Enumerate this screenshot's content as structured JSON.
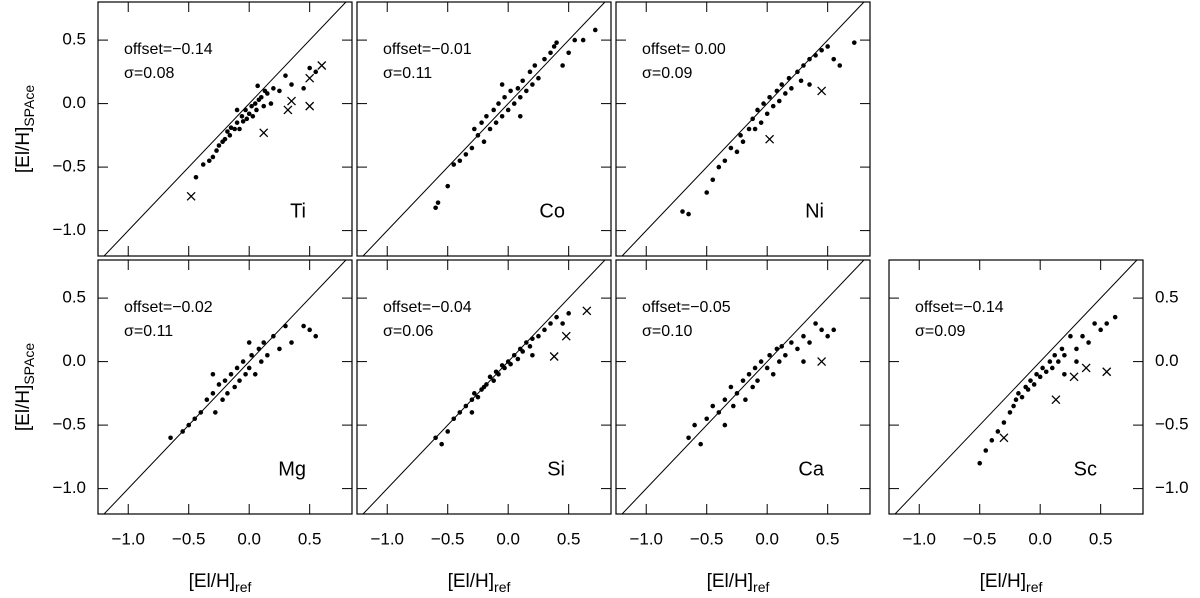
{
  "chart_data": [
    {
      "type": "scatter",
      "element": "Ti",
      "offset": "offset=−0.14",
      "sigma": "σ=0.08",
      "ylabel": {
        "main": "[El/H]",
        "sub": "SPAce"
      },
      "xlim": [
        -1.25,
        0.85
      ],
      "ylim": [
        -1.2,
        0.8
      ],
      "xticks": [
        -1,
        -0.5,
        0,
        0.5
      ],
      "yticks": [
        {
          "value": -1,
          "label": "−1.0"
        },
        {
          "value": -0.5,
          "label": "−0.5"
        },
        {
          "value": 0,
          "label": "0.0"
        },
        0.5
      ],
      "x": [
        -0.44,
        -0.38,
        -0.33,
        -0.3,
        -0.27,
        -0.25,
        -0.22,
        -0.2,
        -0.18,
        -0.16,
        -0.15,
        -0.12,
        -0.1,
        -0.08,
        -0.06,
        -0.05,
        -0.03,
        -0.02,
        0.0,
        0.02,
        0.03,
        0.05,
        0.06,
        0.08,
        0.1,
        0.12,
        0.13,
        0.15,
        0.18,
        0.2,
        0.25,
        0.3,
        0.35,
        0.45,
        0.5,
        0.55,
        -0.1,
        0.07
      ],
      "y": [
        -0.58,
        -0.48,
        -0.45,
        -0.42,
        -0.37,
        -0.33,
        -0.3,
        -0.28,
        -0.22,
        -0.25,
        -0.19,
        -0.2,
        -0.15,
        -0.2,
        -0.1,
        -0.14,
        -0.05,
        -0.12,
        -0.08,
        -0.02,
        -0.1,
        0.0,
        -0.05,
        0.03,
        0.05,
        -0.02,
        0.1,
        0.08,
        0.0,
        0.12,
        0.1,
        0.22,
        0.15,
        0.12,
        0.28,
        0.25,
        -0.05,
        0.14
      ],
      "flagged_x": [
        -0.48,
        0.12,
        0.32,
        0.35,
        0.5,
        0.5,
        0.6
      ],
      "flagged_y": [
        -0.73,
        -0.23,
        -0.05,
        0.02,
        0.2,
        -0.02,
        0.3
      ]
    },
    {
      "type": "scatter",
      "element": "Co",
      "offset": "offset=−0.01",
      "sigma": "σ=0.11",
      "xlim": [
        -1.25,
        0.85
      ],
      "ylim": [
        -1.2,
        0.8
      ],
      "xticks": [
        -1,
        -0.5,
        0,
        0.5
      ],
      "yticks": [
        -1,
        -0.5,
        0,
        0.5
      ],
      "x": [
        -0.6,
        -0.58,
        -0.5,
        -0.45,
        -0.4,
        -0.35,
        -0.3,
        -0.28,
        -0.25,
        -0.22,
        -0.2,
        -0.18,
        -0.15,
        -0.12,
        -0.1,
        -0.08,
        -0.05,
        -0.03,
        0.0,
        0.02,
        0.05,
        0.08,
        0.1,
        0.12,
        0.15,
        0.18,
        0.2,
        0.22,
        0.25,
        0.3,
        0.35,
        0.38,
        0.4,
        0.45,
        0.5,
        0.55,
        0.62,
        0.72,
        -0.05,
        0.1
      ],
      "y": [
        -0.82,
        -0.78,
        -0.65,
        -0.48,
        -0.45,
        -0.4,
        -0.35,
        -0.2,
        -0.25,
        -0.15,
        -0.3,
        -0.1,
        -0.2,
        -0.05,
        -0.15,
        0.0,
        -0.1,
        0.05,
        -0.05,
        0.1,
        0.0,
        0.12,
        0.05,
        0.18,
        0.1,
        0.25,
        0.15,
        0.3,
        0.2,
        0.35,
        0.4,
        0.45,
        0.48,
        0.3,
        0.4,
        0.5,
        0.5,
        0.58,
        0.15,
        -0.1
      ],
      "flagged_x": [],
      "flagged_y": []
    },
    {
      "type": "scatter",
      "element": "Ni",
      "offset": "offset= 0.00",
      "sigma": "σ=0.09",
      "xlim": [
        -1.25,
        0.85
      ],
      "ylim": [
        -1.2,
        0.8
      ],
      "xticks": [
        -1,
        -0.5,
        0,
        0.5
      ],
      "yticks": [
        -1,
        -0.5,
        0,
        0.5
      ],
      "x": [
        -0.7,
        -0.65,
        -0.5,
        -0.45,
        -0.4,
        -0.35,
        -0.3,
        -0.25,
        -0.22,
        -0.2,
        -0.15,
        -0.12,
        -0.1,
        -0.08,
        -0.05,
        -0.03,
        0.0,
        0.02,
        0.05,
        0.08,
        0.1,
        0.12,
        0.15,
        0.18,
        0.2,
        0.25,
        0.28,
        0.3,
        0.35,
        0.4,
        0.45,
        0.5,
        0.55,
        0.6,
        0.72,
        0.35
      ],
      "y": [
        -0.85,
        -0.87,
        -0.7,
        -0.6,
        -0.5,
        -0.45,
        -0.35,
        -0.38,
        -0.25,
        -0.3,
        -0.2,
        -0.12,
        -0.2,
        -0.05,
        -0.15,
        0.0,
        -0.08,
        0.05,
        -0.02,
        0.1,
        0.02,
        0.15,
        0.08,
        0.2,
        0.12,
        0.25,
        0.18,
        0.3,
        0.35,
        0.38,
        0.42,
        0.45,
        0.35,
        0.3,
        0.48,
        0.15
      ],
      "flagged_x": [
        0.02,
        0.45
      ],
      "flagged_y": [
        -0.28,
        0.1
      ]
    },
    {
      "type": "scatter",
      "element": "Mg",
      "offset": "offset=−0.02",
      "sigma": "σ=0.11",
      "ylabel": {
        "main": "[El/H]",
        "sub": "SPAce"
      },
      "xlabel": {
        "main": "[El/H]",
        "sub": "ref"
      },
      "xlim": [
        -1.25,
        0.85
      ],
      "ylim": [
        -1.2,
        0.8
      ],
      "xticks": [
        {
          "value": -1,
          "label": "−1.0"
        },
        {
          "value": -0.5,
          "label": "−0.5"
        },
        {
          "value": 0,
          "label": "0.0"
        },
        0.5
      ],
      "yticks": [
        {
          "value": -1,
          "label": "−1.0"
        },
        {
          "value": -0.5,
          "label": "−0.5"
        },
        {
          "value": 0,
          "label": "0.0"
        },
        0.5
      ],
      "x": [
        -0.65,
        -0.55,
        -0.5,
        -0.45,
        -0.4,
        -0.35,
        -0.3,
        -0.28,
        -0.25,
        -0.22,
        -0.2,
        -0.18,
        -0.15,
        -0.12,
        -0.1,
        -0.08,
        -0.05,
        -0.03,
        0.0,
        0.02,
        0.05,
        0.08,
        0.1,
        0.12,
        0.15,
        0.2,
        0.25,
        0.3,
        0.35,
        0.45,
        0.55,
        0.5,
        -0.3,
        0.0
      ],
      "y": [
        -0.6,
        -0.55,
        -0.5,
        -0.45,
        -0.4,
        -0.3,
        -0.25,
        -0.4,
        -0.18,
        -0.3,
        -0.15,
        -0.25,
        -0.1,
        -0.2,
        -0.05,
        -0.15,
        0.0,
        -0.1,
        -0.05,
        0.05,
        -0.1,
        0.1,
        0.0,
        0.15,
        0.05,
        0.2,
        0.1,
        0.28,
        0.15,
        0.28,
        0.2,
        0.25,
        -0.1,
        0.15
      ],
      "flagged_x": [],
      "flagged_y": []
    },
    {
      "type": "scatter",
      "element": "Si",
      "offset": "offset=−0.04",
      "sigma": "σ=0.06",
      "xlabel": {
        "main": "[El/H]",
        "sub": "ref"
      },
      "xlim": [
        -1.25,
        0.85
      ],
      "ylim": [
        -1.2,
        0.8
      ],
      "xticks": [
        {
          "value": -1,
          "label": "−1.0"
        },
        {
          "value": -0.5,
          "label": "−0.5"
        },
        {
          "value": 0,
          "label": "0.0"
        },
        0.5
      ],
      "yticks": [
        -1,
        -0.5,
        0,
        0.5
      ],
      "x": [
        -0.6,
        -0.55,
        -0.5,
        -0.45,
        -0.4,
        -0.35,
        -0.3,
        -0.28,
        -0.25,
        -0.22,
        -0.2,
        -0.18,
        -0.15,
        -0.12,
        -0.1,
        -0.08,
        -0.05,
        -0.03,
        0.0,
        0.02,
        0.05,
        0.08,
        0.1,
        0.12,
        0.15,
        0.18,
        0.2,
        0.25,
        0.3,
        0.35,
        0.4,
        0.45,
        0.5,
        0.2,
        -0.3
      ],
      "y": [
        -0.6,
        -0.65,
        -0.55,
        -0.45,
        -0.4,
        -0.35,
        -0.3,
        -0.25,
        -0.28,
        -0.22,
        -0.2,
        -0.18,
        -0.12,
        -0.15,
        -0.08,
        -0.1,
        -0.03,
        -0.05,
        0.0,
        -0.02,
        0.05,
        0.02,
        0.1,
        0.08,
        0.15,
        0.12,
        0.18,
        0.2,
        0.25,
        0.3,
        0.35,
        0.3,
        0.38,
        0.05,
        -0.4
      ],
      "flagged_x": [
        0.38,
        0.48,
        0.65
      ],
      "flagged_y": [
        0.04,
        0.2,
        0.4
      ]
    },
    {
      "type": "scatter",
      "element": "Ca",
      "offset": "offset=−0.05",
      "sigma": "σ=0.10",
      "xlabel": {
        "main": "[El/H]",
        "sub": "ref"
      },
      "xlim": [
        -1.25,
        0.85
      ],
      "ylim": [
        -1.2,
        0.8
      ],
      "xticks": [
        {
          "value": -1,
          "label": "−1.0"
        },
        {
          "value": -0.5,
          "label": "−0.5"
        },
        {
          "value": 0,
          "label": "0.0"
        },
        0.5
      ],
      "yticks": [
        -1,
        -0.5,
        0,
        0.5
      ],
      "x": [
        -0.65,
        -0.6,
        -0.55,
        -0.5,
        -0.45,
        -0.4,
        -0.35,
        -0.3,
        -0.28,
        -0.25,
        -0.2,
        -0.18,
        -0.15,
        -0.12,
        -0.1,
        -0.08,
        -0.05,
        0.0,
        0.02,
        0.05,
        0.08,
        0.1,
        0.12,
        0.15,
        0.2,
        0.25,
        0.3,
        0.35,
        0.4,
        0.45,
        0.5,
        0.55,
        0.3,
        -0.35
      ],
      "y": [
        -0.6,
        -0.5,
        -0.65,
        -0.45,
        -0.35,
        -0.4,
        -0.3,
        -0.2,
        -0.35,
        -0.25,
        -0.15,
        -0.3,
        -0.1,
        -0.2,
        -0.05,
        -0.15,
        0.0,
        -0.05,
        0.05,
        -0.1,
        0.1,
        0.0,
        0.12,
        0.05,
        0.15,
        0.1,
        0.2,
        0.15,
        0.3,
        0.25,
        0.2,
        0.25,
        0.0,
        -0.5
      ],
      "flagged_x": [
        0.45
      ],
      "flagged_y": [
        0.0
      ]
    },
    {
      "type": "scatter",
      "element": "Sc",
      "offset": "offset=−0.14",
      "sigma": "σ=0.09",
      "xlabel": {
        "main": "[El/H]",
        "sub": "ref"
      },
      "y_axis_side": "right",
      "xlim": [
        -1.25,
        0.85
      ],
      "ylim": [
        -1.2,
        0.8
      ],
      "xticks": [
        {
          "value": -1,
          "label": "−1.0"
        },
        {
          "value": -0.5,
          "label": "−0.5"
        },
        {
          "value": 0,
          "label": "0.0"
        },
        0.5
      ],
      "yticks": [
        {
          "value": -1,
          "label": "−1.0"
        },
        {
          "value": -0.5,
          "label": "−0.5"
        },
        {
          "value": 0,
          "label": "0.0"
        },
        0.5
      ],
      "x": [
        -0.5,
        -0.45,
        -0.4,
        -0.35,
        -0.3,
        -0.25,
        -0.22,
        -0.2,
        -0.18,
        -0.15,
        -0.12,
        -0.1,
        -0.08,
        -0.05,
        -0.03,
        0.0,
        0.02,
        0.05,
        0.08,
        0.1,
        0.12,
        0.15,
        0.18,
        0.2,
        0.25,
        0.3,
        0.35,
        0.4,
        0.45,
        0.5,
        0.55,
        0.62,
        0.2,
        0.3
      ],
      "y": [
        -0.8,
        -0.7,
        -0.62,
        -0.55,
        -0.48,
        -0.4,
        -0.35,
        -0.3,
        -0.25,
        -0.28,
        -0.2,
        -0.22,
        -0.15,
        -0.18,
        -0.1,
        -0.12,
        -0.05,
        -0.08,
        0.0,
        -0.05,
        0.05,
        0.0,
        0.1,
        0.05,
        0.2,
        0.1,
        0.2,
        0.15,
        0.3,
        0.25,
        0.3,
        0.35,
        -0.1,
        0.0
      ],
      "flagged_x": [
        -0.3,
        0.13,
        0.28,
        0.38,
        0.55
      ],
      "flagged_y": [
        -0.6,
        -0.3,
        -0.12,
        -0.05,
        -0.08
      ]
    }
  ]
}
